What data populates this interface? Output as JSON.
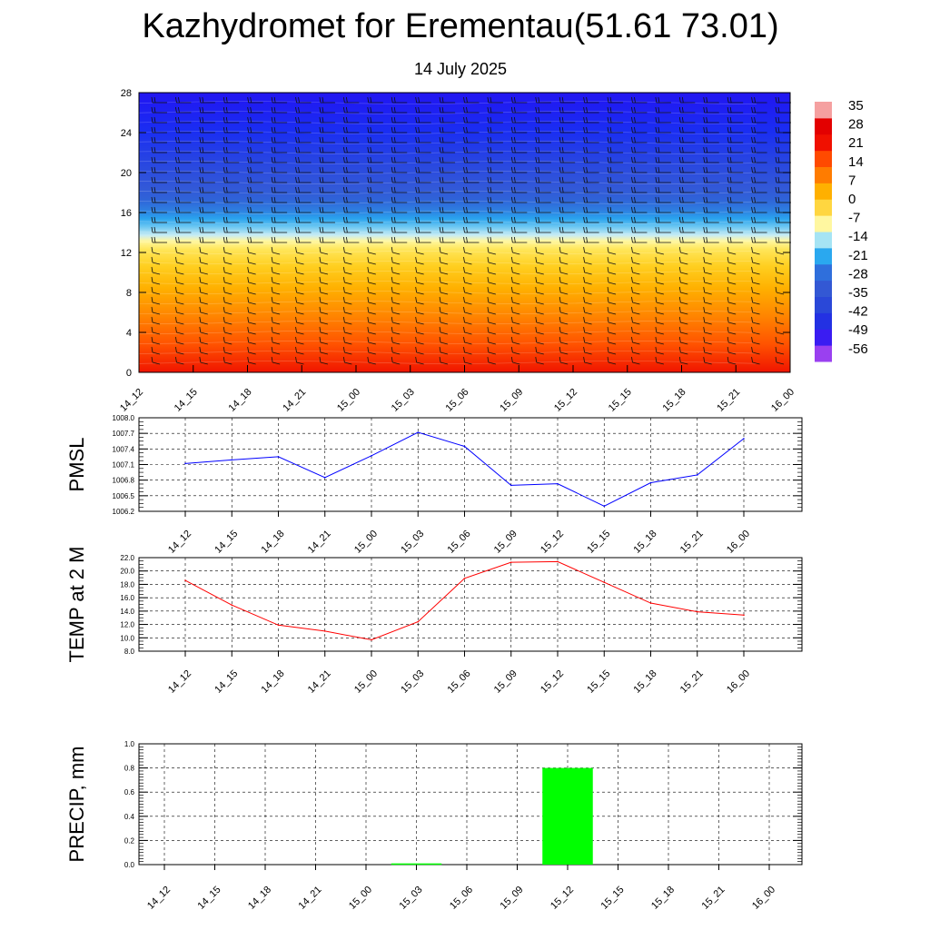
{
  "title": "Kazhydromet for Erementau(51.61 73.01)",
  "subtitle": "14 July 2025",
  "time_labels": [
    "14_12",
    "14_15",
    "14_18",
    "14_21",
    "15_00",
    "15_03",
    "15_06",
    "15_09",
    "15_12",
    "15_15",
    "15_18",
    "15_21",
    "16_00"
  ],
  "chart_data": [
    {
      "type": "heatmap",
      "name": "temperature-cross-section",
      "x": [
        "14_12",
        "14_15",
        "14_18",
        "14_21",
        "15_00",
        "15_03",
        "15_06",
        "15_09",
        "15_12",
        "15_15",
        "15_18",
        "15_21",
        "16_00"
      ],
      "y_ticks": [
        0,
        4,
        8,
        12,
        16,
        20,
        24,
        28
      ],
      "ylim": [
        0,
        28
      ],
      "colorbar_labels": [
        "35",
        "28",
        "21",
        "14",
        "7",
        "0",
        "-7",
        "-14",
        "-21",
        "-28",
        "-35",
        "-42",
        "-49",
        "-56"
      ],
      "colorscale": [
        "#9a40f0",
        "#3a1cf2",
        "#2331e3",
        "#2a48d8",
        "#3358d4",
        "#2f6fdc",
        "#2aa8ef",
        "#a6e4f4",
        "#fff7a0",
        "#ffd640",
        "#ffb000",
        "#ff7c00",
        "#ff4a00",
        "#f01000",
        "#e30000",
        "#f5a0a0"
      ],
      "wind_barbs": true
    },
    {
      "type": "line",
      "name": "pmsl",
      "ylabel": "PMSL",
      "x": [
        "14_12",
        "14_15",
        "14_18",
        "14_21",
        "15_00",
        "15_03",
        "15_06",
        "15_09",
        "15_12",
        "15_15",
        "15_18",
        "15_21",
        "16_00"
      ],
      "values": [
        1007.12,
        1007.19,
        1007.25,
        1006.85,
        1007.27,
        1007.72,
        1007.45,
        1006.7,
        1006.73,
        1006.3,
        1006.75,
        1006.9,
        1007.6
      ],
      "ylim": [
        1006.2,
        1008.0
      ],
      "y_ticks": [
        "1006.2",
        "1006.5",
        "1006.8",
        "1007.1",
        "1007.4",
        "1007.7",
        "1008.0"
      ],
      "color": "#0000ff",
      "grid": true
    },
    {
      "type": "line",
      "name": "temp-2m",
      "ylabel": "TEMP at 2 M",
      "x": [
        "14_12",
        "14_15",
        "14_18",
        "14_21",
        "15_00",
        "15_03",
        "15_06",
        "15_09",
        "15_12",
        "15_15",
        "15_18",
        "15_21",
        "16_00"
      ],
      "values": [
        18.6,
        14.9,
        11.9,
        11.0,
        9.7,
        12.4,
        18.9,
        21.3,
        21.4,
        18.3,
        15.2,
        13.9,
        13.4
      ],
      "ylim": [
        8.0,
        22.0
      ],
      "y_ticks": [
        "8.0",
        "10.0",
        "12.0",
        "14.0",
        "16.0",
        "18.0",
        "20.0",
        "22.0"
      ],
      "color": "#ff0000",
      "grid": true
    },
    {
      "type": "bar",
      "name": "precip",
      "ylabel": "PRECIP, mm",
      "categories": [
        "14_12",
        "14_15",
        "14_18",
        "14_21",
        "15_00",
        "15_03",
        "15_06",
        "15_09",
        "15_12",
        "15_15",
        "15_18",
        "15_21",
        "16_00"
      ],
      "values": [
        0,
        0,
        0,
        0,
        0,
        0.01,
        0,
        0,
        0.8,
        0,
        0,
        0,
        0
      ],
      "ylim": [
        0,
        1.0
      ],
      "y_ticks": [
        "0.0",
        "0.2",
        "0.4",
        "0.6",
        "0.8",
        "1.0"
      ],
      "color": "#00ff00",
      "grid": true
    }
  ]
}
